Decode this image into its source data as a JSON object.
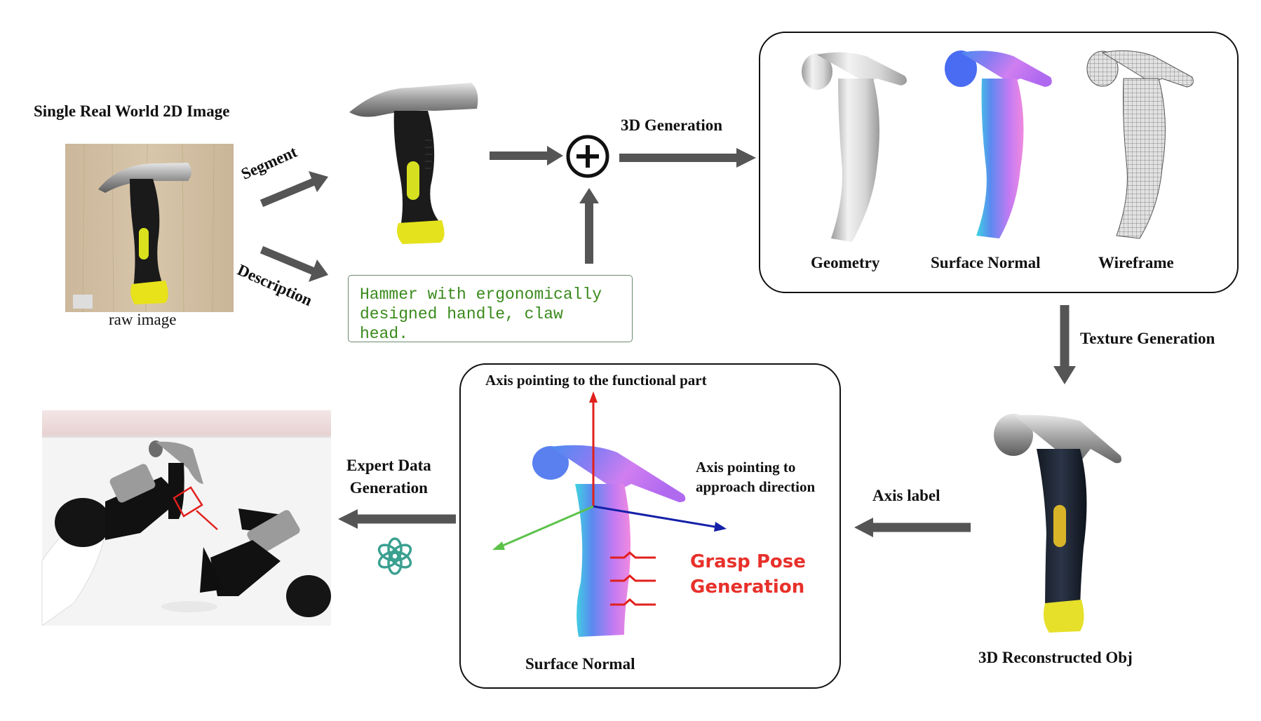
{
  "input": {
    "title": "Single Real World 2D Image",
    "caption": "raw image"
  },
  "steps": {
    "segment": "Segment",
    "description": "Description",
    "generation_3d": "3D Generation",
    "texture": "Texture Generation",
    "axis_label": "Axis label",
    "expert_data": [
      "Expert Data",
      "Generation"
    ]
  },
  "text_prompt": [
    "Hammer with ergonomically",
    "designed handle, claw head."
  ],
  "views": {
    "geometry": "Geometry",
    "normal": "Surface Normal",
    "wireframe": "Wireframe"
  },
  "reconstructed_caption": "3D Reconstructed Obj",
  "axis_panel": {
    "functional_axis": "Axis pointing to the functional part",
    "approach_axis": [
      "Axis pointing to",
      "approach direction"
    ],
    "grasp": [
      "Grasp Pose",
      "Generation"
    ],
    "caption": "Surface Normal"
  },
  "icons": {
    "combine": "plus-circle-icon",
    "llm": "openai-logo-icon"
  },
  "colors": {
    "arrow": "#555555",
    "prompt_text": "#3a8a1c",
    "grasp": "#e8302a",
    "axis_red": "#e0201c",
    "axis_blue": "#1520a8",
    "axis_green": "#5cc24a"
  }
}
